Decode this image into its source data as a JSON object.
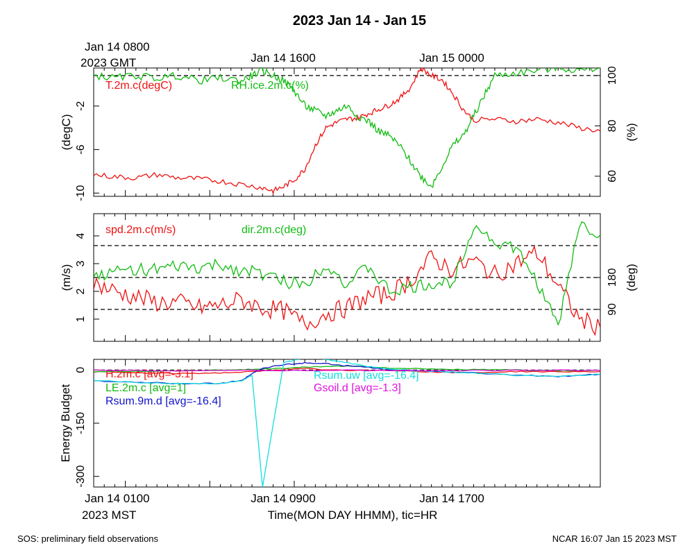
{
  "title": "2023 Jan 14 - Jan 15",
  "top_axis": {
    "ticks": [
      "Jan 14 1600",
      "Jan 15 0000"
    ],
    "first_tick": "Jan 14 0800",
    "first_tick_sub": "2023 GMT"
  },
  "bottom_axis": {
    "ticks": [
      "Jan 14 0900",
      "Jan 14 1700"
    ],
    "first_tick": "Jan 14 0100",
    "first_tick_sub": "2023 MST",
    "xlabel": "Time(MON DAY HHMM), tic=HR"
  },
  "footer": {
    "left": "SOS: preliminary field observations",
    "right": "NCAR 16:07 Jan 15 2023 MST"
  },
  "colors": {
    "red": "#ee1111",
    "green": "#11bb11",
    "blue": "#1111cc",
    "cyan": "#11dddd",
    "magenta": "#dd11dd"
  },
  "chart_data": [
    {
      "type": "line",
      "ylabel_left": "(degC)",
      "ylabel_right": "(%)",
      "yticks_left": [
        "-2",
        "-6",
        "-10"
      ],
      "yticks_right": [
        "100",
        "80",
        "60"
      ],
      "ylim_left": [
        -10.3,
        1.5
      ],
      "ylim_right": [
        52,
        103
      ],
      "ref_lines_right": [
        100
      ],
      "series": [
        {
          "name": "T.2m.c(degC)",
          "color": "red",
          "axis": "left",
          "x": [
            0,
            2,
            4,
            6,
            8,
            10,
            12,
            14,
            16,
            17,
            18,
            19,
            20,
            21,
            22,
            23,
            24,
            25,
            26,
            27,
            28,
            29,
            30,
            31,
            32,
            33,
            34,
            35,
            36,
            38,
            40,
            42,
            44,
            46,
            48
          ],
          "y": [
            -8.3,
            -8.5,
            -8.6,
            -8.3,
            -8.6,
            -8.7,
            -8.9,
            -9.2,
            -9.5,
            -9.8,
            -9.4,
            -8.8,
            -7.8,
            -5.6,
            -4.0,
            -3.5,
            -3.2,
            -3.1,
            -2.7,
            -2.3,
            -1.9,
            -1.3,
            -0.3,
            1.5,
            0.8,
            0.4,
            -0.8,
            -2.3,
            -3.3,
            -3.2,
            -3.4,
            -3.2,
            -3.5,
            -4.0,
            -4.3
          ]
        },
        {
          "name": "RH.ice.2m.c(%)",
          "color": "green",
          "axis": "right",
          "x": [
            0,
            2,
            4,
            6,
            8,
            10,
            12,
            14,
            15,
            16,
            17,
            18,
            19,
            20,
            21,
            22,
            23,
            24,
            25,
            26,
            27,
            28,
            29,
            30,
            31,
            32,
            33,
            34,
            35,
            36,
            37,
            38,
            40,
            42,
            44,
            46,
            48
          ],
          "y": [
            100,
            99,
            100,
            99,
            100,
            98,
            99,
            98,
            100,
            102,
            100,
            98,
            94,
            88,
            86,
            84,
            86,
            88,
            84,
            82,
            78,
            76,
            72,
            66,
            60,
            56,
            64,
            72,
            76,
            84,
            92,
            100,
            101,
            102,
            103,
            102,
            103
          ]
        }
      ]
    },
    {
      "type": "line",
      "ylabel_left": "(m/s)",
      "ylabel_right": "(deg)",
      "yticks_left": [
        "1",
        "2",
        "3",
        "4"
      ],
      "yticks_right": [
        "90",
        "180"
      ],
      "ylim_left": [
        0.2,
        4.8
      ],
      "ylim_right": [
        0,
        360
      ],
      "ref_lines_right": [
        90,
        180,
        270
      ],
      "series": [
        {
          "name": "spd.2m.c(m/s)",
          "color": "red",
          "axis": "left",
          "x": [
            0,
            2,
            4,
            6,
            8,
            10,
            12,
            14,
            16,
            18,
            20,
            22,
            24,
            26,
            28,
            30,
            32,
            34,
            36,
            38,
            40,
            42,
            44,
            46,
            48
          ],
          "y": [
            2.3,
            2.0,
            1.8,
            1.6,
            1.6,
            1.4,
            1.5,
            1.7,
            1.4,
            1.3,
            0.8,
            1.2,
            1.4,
            1.8,
            1.9,
            2.4,
            3.2,
            2.8,
            3.1,
            2.6,
            3.0,
            3.4,
            2.2,
            1.0,
            0.7
          ]
        },
        {
          "name": "dir.2m.c(deg)",
          "color": "green",
          "axis": "right",
          "x": [
            0,
            2,
            4,
            6,
            8,
            10,
            12,
            14,
            16,
            18,
            20,
            22,
            24,
            26,
            28,
            30,
            32,
            34,
            36,
            38,
            40,
            42,
            44,
            46,
            48
          ],
          "y": [
            185,
            195,
            205,
            200,
            210,
            205,
            215,
            200,
            190,
            170,
            160,
            220,
            160,
            210,
            140,
            150,
            160,
            165,
            330,
            280,
            260,
            170,
            40,
            330,
            300
          ]
        }
      ]
    },
    {
      "type": "line",
      "ylabel_left": "Energy Budget",
      "yticks_left": [
        "0",
        "-150",
        "-300"
      ],
      "ylim_left": [
        -330,
        30
      ],
      "ref_lines_left": [
        0
      ],
      "series": [
        {
          "name": "H.2m.c",
          "legend": "H.2m.c [avg=-3.1]",
          "color": "red",
          "x": [
            0,
            4,
            8,
            12,
            15,
            18,
            20,
            24,
            28,
            32,
            36,
            40,
            44,
            48
          ],
          "y": [
            -5,
            -8,
            -10,
            -8,
            -5,
            2,
            4,
            -2,
            0,
            -6,
            -8,
            -4,
            -5,
            -4
          ]
        },
        {
          "name": "LE.2m.c",
          "legend": "LE.2m.c [avg=1]",
          "color": "green",
          "x": [
            0,
            4,
            8,
            12,
            15,
            18,
            20,
            24,
            28,
            32,
            36,
            40,
            44,
            48
          ],
          "y": [
            -5,
            -3,
            -2,
            0,
            2,
            5,
            8,
            12,
            6,
            2,
            1,
            0,
            -2,
            -1
          ]
        },
        {
          "name": "Rsum.9m.d",
          "legend": "Rsum.9m.d [avg=-16.4]",
          "color": "blue",
          "x": [
            0,
            4,
            8,
            12,
            14,
            15,
            16,
            18,
            20,
            22,
            24,
            26,
            28,
            32,
            36,
            40,
            44,
            48
          ],
          "y": [
            -30,
            -35,
            -38,
            -38,
            -30,
            -10,
            5,
            15,
            20,
            18,
            12,
            8,
            0,
            -3,
            -8,
            -15,
            -18,
            -12
          ]
        },
        {
          "name": "Rsum.uw",
          "legend": "Rsum.uw [avg=-16.4]",
          "color": "cyan",
          "x": [
            0,
            4,
            8,
            12,
            14,
            15,
            16,
            18,
            20,
            22,
            24,
            26,
            28,
            32,
            36,
            40,
            44,
            48
          ],
          "y": [
            -30,
            -35,
            -38,
            -38,
            -30,
            -15,
            -330,
            20,
            35,
            30,
            20,
            10,
            2,
            -3,
            -8,
            -15,
            -18,
            -12
          ]
        },
        {
          "name": "Gsoil.d",
          "legend": "Gsoil.d [avg=-1.3]",
          "color": "magenta",
          "x": [
            0,
            8,
            16,
            24,
            32,
            40,
            48
          ],
          "y": [
            -1,
            -2,
            -1,
            -1,
            -2,
            -1,
            -1
          ]
        }
      ]
    }
  ]
}
